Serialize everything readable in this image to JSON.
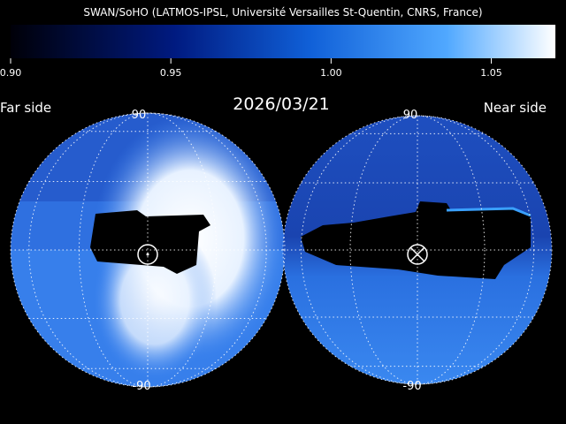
{
  "header": {
    "title": "SWAN/SoHO (LATMOS-IPSL, Université Versailles St-Quentin, CNRS, France)",
    "date": "2026/03/21"
  },
  "colorbar": {
    "lim": [
      0.9,
      1.07
    ],
    "ticks": [
      {
        "value": 0.9,
        "label": "0.90"
      },
      {
        "value": 0.95,
        "label": "0.95"
      },
      {
        "value": 1.0,
        "label": "1.00"
      },
      {
        "value": 1.05,
        "label": "1.05"
      }
    ]
  },
  "panels": [
    {
      "label": "Far side",
      "top_label": 90,
      "bottom_label": -90
    },
    {
      "label": "Near side",
      "top_label": 90,
      "bottom_label": -90
    }
  ]
}
